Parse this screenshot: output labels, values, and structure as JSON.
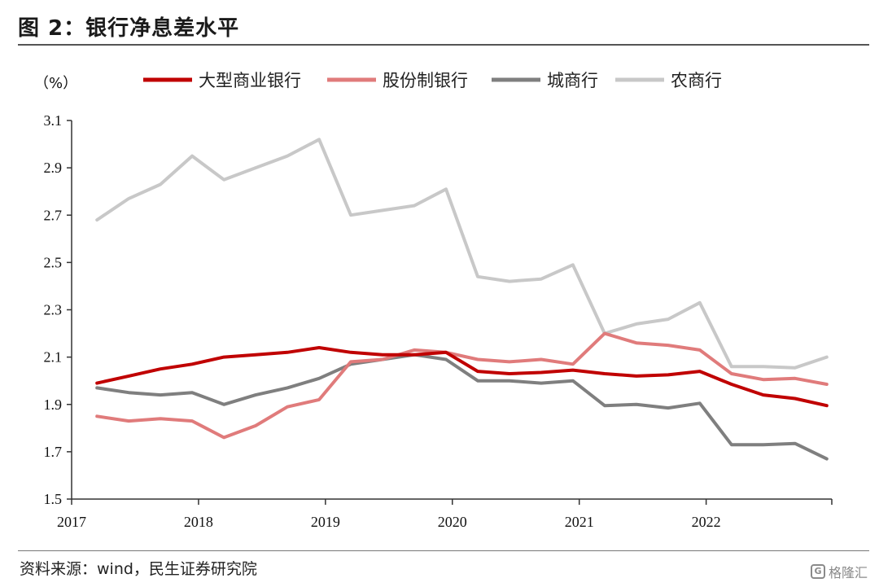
{
  "title": "图 2：银行净息差水平",
  "source": "资料来源：wind，民生证券研究院",
  "watermark": "格隆汇",
  "chart_data": {
    "type": "line",
    "title": "图 2：银行净息差水平",
    "ylabel": "（%）",
    "xlabel": "",
    "ylim": [
      1.5,
      3.1
    ],
    "xlim": [
      2017,
      2022.99
    ],
    "yticks": [
      1.5,
      1.7,
      1.9,
      2.1,
      2.3,
      2.5,
      2.7,
      2.9,
      3.1
    ],
    "ytick_labels": [
      "1.5",
      "1.7",
      "1.9",
      "2.1",
      "2.3",
      "2.5",
      "2.7",
      "2.9",
      "3.1"
    ],
    "xticks": [
      2017,
      2018,
      2019,
      2020,
      2021,
      2022
    ],
    "xtick_labels": [
      "2017",
      "2018",
      "2019",
      "2020",
      "2021",
      "2022"
    ],
    "grid": false,
    "legend_position": "top",
    "x": [
      2017.2,
      2017.45,
      2017.7,
      2017.95,
      2018.2,
      2018.45,
      2018.7,
      2018.95,
      2019.2,
      2019.45,
      2019.7,
      2019.95,
      2020.2,
      2020.45,
      2020.7,
      2020.95,
      2021.2,
      2021.45,
      2021.7,
      2021.95,
      2022.2,
      2022.45,
      2022.7,
      2022.95
    ],
    "series": [
      {
        "name": "大型商业银行",
        "color": "#c00000",
        "width": 4,
        "values": [
          1.99,
          2.02,
          2.05,
          2.07,
          2.1,
          2.11,
          2.12,
          2.14,
          2.12,
          2.11,
          2.11,
          2.12,
          2.04,
          2.03,
          2.035,
          2.045,
          2.03,
          2.02,
          2.025,
          2.04,
          1.985,
          1.94,
          1.925,
          1.895
        ]
      },
      {
        "name": "股份制银行",
        "color": "#e07b7b",
        "width": 4,
        "values": [
          1.85,
          1.83,
          1.84,
          1.83,
          1.76,
          1.81,
          1.89,
          1.92,
          2.08,
          2.09,
          2.13,
          2.12,
          2.09,
          2.08,
          2.09,
          2.07,
          2.2,
          2.16,
          2.15,
          2.13,
          2.03,
          2.005,
          2.01,
          1.985
        ]
      },
      {
        "name": "城商行",
        "color": "#7f7f7f",
        "width": 4,
        "values": [
          1.97,
          1.95,
          1.94,
          1.95,
          1.9,
          1.94,
          1.97,
          2.01,
          2.07,
          2.09,
          2.11,
          2.09,
          2.0,
          2.0,
          1.99,
          2.0,
          1.895,
          1.9,
          1.885,
          1.905,
          1.73,
          1.73,
          1.735,
          1.67
        ]
      },
      {
        "name": "农商行",
        "color": "#c8c8c8",
        "width": 4,
        "values": [
          2.68,
          2.77,
          2.83,
          2.95,
          2.85,
          2.9,
          2.95,
          3.02,
          2.7,
          2.72,
          2.74,
          2.81,
          2.44,
          2.42,
          2.43,
          2.49,
          2.2,
          2.24,
          2.26,
          2.33,
          2.06,
          2.06,
          2.055,
          2.1
        ]
      }
    ]
  }
}
